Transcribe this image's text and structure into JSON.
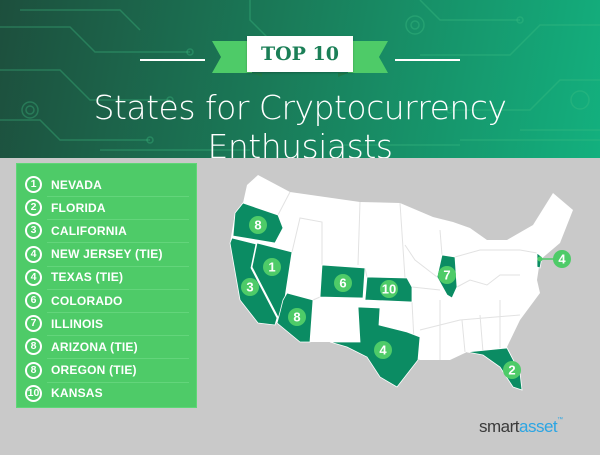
{
  "header": {
    "badge": "TOP 10",
    "title": "States for Cryptocurrency Enthusiasts"
  },
  "ranking": [
    {
      "rank": "1",
      "state": "NEVADA"
    },
    {
      "rank": "2",
      "state": "FLORIDA"
    },
    {
      "rank": "3",
      "state": "CALIFORNIA"
    },
    {
      "rank": "4",
      "state": "NEW JERSEY (TIE)"
    },
    {
      "rank": "4",
      "state": "TEXAS (TIE)"
    },
    {
      "rank": "6",
      "state": "COLORADO"
    },
    {
      "rank": "7",
      "state": "ILLINOIS"
    },
    {
      "rank": "8",
      "state": "ARIZONA (TIE)"
    },
    {
      "rank": "8",
      "state": "OREGON (TIE)"
    },
    {
      "rank": "10",
      "state": "KANSAS"
    }
  ],
  "map": {
    "highlight_color": "#0b8c63",
    "marker_color": "#4ecb68",
    "base_color": "#ffffff",
    "states": [
      {
        "state": "Oregon",
        "rank": "8"
      },
      {
        "state": "Nevada",
        "rank": "1"
      },
      {
        "state": "California",
        "rank": "3"
      },
      {
        "state": "Arizona",
        "rank": "8"
      },
      {
        "state": "Colorado",
        "rank": "6"
      },
      {
        "state": "Kansas",
        "rank": "10"
      },
      {
        "state": "Texas",
        "rank": "4"
      },
      {
        "state": "Illinois",
        "rank": "7"
      },
      {
        "state": "Florida",
        "rank": "2"
      },
      {
        "state": "New Jersey",
        "rank": "4"
      }
    ]
  },
  "logo": {
    "part1": "smart",
    "part2": "asset",
    "tm": "™"
  }
}
